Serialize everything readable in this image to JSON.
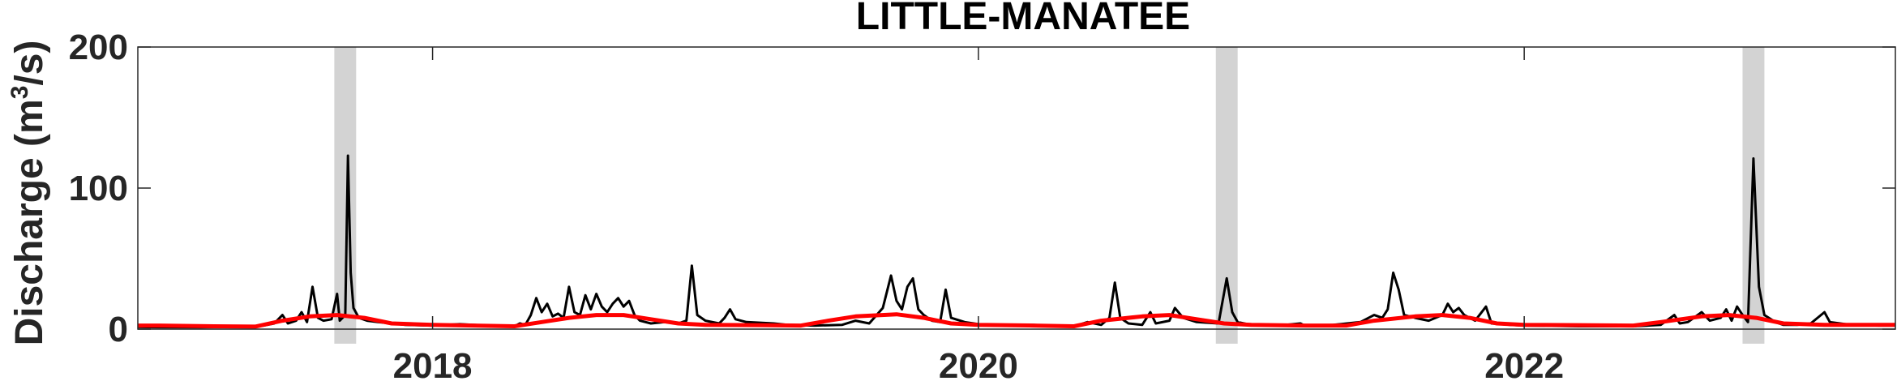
{
  "chart_data": {
    "type": "line",
    "title": "LITTLE-MANATEE",
    "ylabel": {
      "pre": "Discharge (m",
      "sup": "3",
      "post": "/s)"
    },
    "xlabel": "",
    "xlim": [
      2016.92,
      2023.36
    ],
    "ylim": [
      0,
      200
    ],
    "yticks": [
      0,
      100,
      200
    ],
    "xticks": [
      2018,
      2020,
      2022
    ],
    "grid": false,
    "colors": {
      "observed": "#000000",
      "seasonal": "#ff0000",
      "highlight": "#d3d3d3",
      "axis": "#262626"
    },
    "highlight_periods": [
      [
        2017.64,
        2017.72
      ],
      [
        2020.87,
        2020.95
      ],
      [
        2022.8,
        2022.88
      ]
    ],
    "series": [
      {
        "role": "observed",
        "points": [
          [
            2016.92,
            1.5
          ],
          [
            2017.0,
            1.4
          ],
          [
            2017.15,
            1.3
          ],
          [
            2017.3,
            1.5
          ],
          [
            2017.38,
            2.5
          ],
          [
            2017.42,
            4
          ],
          [
            2017.45,
            10
          ],
          [
            2017.47,
            4
          ],
          [
            2017.5,
            6
          ],
          [
            2017.52,
            12
          ],
          [
            2017.54,
            5
          ],
          [
            2017.56,
            30
          ],
          [
            2017.58,
            8
          ],
          [
            2017.6,
            6
          ],
          [
            2017.63,
            7
          ],
          [
            2017.65,
            25
          ],
          [
            2017.66,
            6
          ],
          [
            2017.68,
            10
          ],
          [
            2017.69,
            123
          ],
          [
            2017.7,
            40
          ],
          [
            2017.71,
            15
          ],
          [
            2017.73,
            8
          ],
          [
            2017.76,
            6
          ],
          [
            2017.8,
            5
          ],
          [
            2017.9,
            3
          ],
          [
            2018.0,
            2.5
          ],
          [
            2018.1,
            3.5
          ],
          [
            2018.2,
            2.5
          ],
          [
            2018.3,
            2
          ],
          [
            2018.32,
            4
          ],
          [
            2018.34,
            3
          ],
          [
            2018.36,
            10
          ],
          [
            2018.38,
            22
          ],
          [
            2018.4,
            12
          ],
          [
            2018.42,
            18
          ],
          [
            2018.44,
            9
          ],
          [
            2018.46,
            11
          ],
          [
            2018.48,
            8
          ],
          [
            2018.5,
            30
          ],
          [
            2018.52,
            12
          ],
          [
            2018.54,
            10
          ],
          [
            2018.56,
            24
          ],
          [
            2018.58,
            14
          ],
          [
            2018.6,
            25
          ],
          [
            2018.62,
            16
          ],
          [
            2018.64,
            12
          ],
          [
            2018.66,
            18
          ],
          [
            2018.68,
            22
          ],
          [
            2018.7,
            16
          ],
          [
            2018.72,
            20
          ],
          [
            2018.74,
            10
          ],
          [
            2018.76,
            6
          ],
          [
            2018.8,
            4
          ],
          [
            2018.85,
            5
          ],
          [
            2018.9,
            4
          ],
          [
            2018.93,
            6
          ],
          [
            2018.95,
            45
          ],
          [
            2018.97,
            10
          ],
          [
            2019.0,
            6
          ],
          [
            2019.05,
            4
          ],
          [
            2019.07,
            8
          ],
          [
            2019.09,
            14
          ],
          [
            2019.11,
            7
          ],
          [
            2019.15,
            5
          ],
          [
            2019.25,
            4
          ],
          [
            2019.3,
            3
          ],
          [
            2019.4,
            2.5
          ],
          [
            2019.5,
            3
          ],
          [
            2019.55,
            6
          ],
          [
            2019.6,
            4
          ],
          [
            2019.65,
            15
          ],
          [
            2019.68,
            38
          ],
          [
            2019.7,
            20
          ],
          [
            2019.72,
            14
          ],
          [
            2019.74,
            30
          ],
          [
            2019.76,
            36
          ],
          [
            2019.78,
            14
          ],
          [
            2019.8,
            10
          ],
          [
            2019.83,
            6
          ],
          [
            2019.86,
            5
          ],
          [
            2019.88,
            28
          ],
          [
            2019.9,
            8
          ],
          [
            2019.95,
            5
          ],
          [
            2020.0,
            3.5
          ],
          [
            2020.1,
            3
          ],
          [
            2020.2,
            3
          ],
          [
            2020.3,
            2
          ],
          [
            2020.35,
            2
          ],
          [
            2020.4,
            5
          ],
          [
            2020.45,
            3
          ],
          [
            2020.48,
            8
          ],
          [
            2020.5,
            33
          ],
          [
            2020.52,
            8
          ],
          [
            2020.55,
            4
          ],
          [
            2020.6,
            3
          ],
          [
            2020.63,
            12
          ],
          [
            2020.65,
            4
          ],
          [
            2020.7,
            6
          ],
          [
            2020.72,
            15
          ],
          [
            2020.75,
            8
          ],
          [
            2020.8,
            5
          ],
          [
            2020.88,
            4
          ],
          [
            2020.91,
            36
          ],
          [
            2020.93,
            12
          ],
          [
            2020.95,
            5
          ],
          [
            2021.0,
            3
          ],
          [
            2021.1,
            2.5
          ],
          [
            2021.18,
            4
          ],
          [
            2021.2,
            2
          ],
          [
            2021.3,
            3
          ],
          [
            2021.4,
            5
          ],
          [
            2021.45,
            10
          ],
          [
            2021.48,
            8
          ],
          [
            2021.5,
            14
          ],
          [
            2021.52,
            40
          ],
          [
            2021.54,
            28
          ],
          [
            2021.56,
            10
          ],
          [
            2021.6,
            8
          ],
          [
            2021.65,
            6
          ],
          [
            2021.7,
            10
          ],
          [
            2021.72,
            18
          ],
          [
            2021.74,
            12
          ],
          [
            2021.76,
            15
          ],
          [
            2021.78,
            10
          ],
          [
            2021.82,
            6
          ],
          [
            2021.86,
            16
          ],
          [
            2021.88,
            4
          ],
          [
            2021.95,
            3
          ],
          [
            2022.0,
            2.5
          ],
          [
            2022.2,
            2
          ],
          [
            2022.4,
            2
          ],
          [
            2022.5,
            3
          ],
          [
            2022.55,
            10
          ],
          [
            2022.57,
            4
          ],
          [
            2022.6,
            5
          ],
          [
            2022.65,
            12
          ],
          [
            2022.68,
            6
          ],
          [
            2022.72,
            8
          ],
          [
            2022.74,
            14
          ],
          [
            2022.76,
            6
          ],
          [
            2022.78,
            16
          ],
          [
            2022.8,
            10
          ],
          [
            2022.82,
            5
          ],
          [
            2022.84,
            121
          ],
          [
            2022.86,
            30
          ],
          [
            2022.88,
            10
          ],
          [
            2022.92,
            5
          ],
          [
            2022.95,
            3
          ],
          [
            2023.0,
            3
          ],
          [
            2023.05,
            4
          ],
          [
            2023.1,
            12
          ],
          [
            2023.12,
            5
          ],
          [
            2023.2,
            3
          ],
          [
            2023.3,
            2.5
          ],
          [
            2023.36,
            2.5
          ]
        ]
      },
      {
        "role": "seasonal",
        "points": [
          [
            2016.92,
            2.5
          ],
          [
            2017.0,
            2.5
          ],
          [
            2017.2,
            2
          ],
          [
            2017.35,
            1.8
          ],
          [
            2017.45,
            6
          ],
          [
            2017.55,
            9
          ],
          [
            2017.65,
            10
          ],
          [
            2017.75,
            8
          ],
          [
            2017.85,
            4
          ],
          [
            2018.0,
            3
          ],
          [
            2018.15,
            2.5
          ],
          [
            2018.3,
            2
          ],
          [
            2018.4,
            5
          ],
          [
            2018.5,
            8
          ],
          [
            2018.6,
            10
          ],
          [
            2018.7,
            10
          ],
          [
            2018.8,
            7
          ],
          [
            2018.9,
            4
          ],
          [
            2019.0,
            3
          ],
          [
            2019.2,
            2.8
          ],
          [
            2019.35,
            2.5
          ],
          [
            2019.45,
            6
          ],
          [
            2019.55,
            9
          ],
          [
            2019.7,
            10.5
          ],
          [
            2019.8,
            8
          ],
          [
            2019.9,
            4
          ],
          [
            2020.0,
            3
          ],
          [
            2020.2,
            2.5
          ],
          [
            2020.35,
            2
          ],
          [
            2020.45,
            6
          ],
          [
            2020.6,
            9
          ],
          [
            2020.7,
            10
          ],
          [
            2020.8,
            7
          ],
          [
            2020.9,
            4
          ],
          [
            2021.0,
            3
          ],
          [
            2021.2,
            2.5
          ],
          [
            2021.35,
            2.5
          ],
          [
            2021.45,
            6
          ],
          [
            2021.6,
            9
          ],
          [
            2021.7,
            10
          ],
          [
            2021.8,
            8
          ],
          [
            2021.9,
            4
          ],
          [
            2022.0,
            3
          ],
          [
            2022.2,
            2.8
          ],
          [
            2022.4,
            2.5
          ],
          [
            2022.5,
            5
          ],
          [
            2022.65,
            9
          ],
          [
            2022.75,
            10
          ],
          [
            2022.85,
            8
          ],
          [
            2022.95,
            4
          ],
          [
            2023.1,
            3
          ],
          [
            2023.36,
            3
          ]
        ]
      }
    ]
  }
}
